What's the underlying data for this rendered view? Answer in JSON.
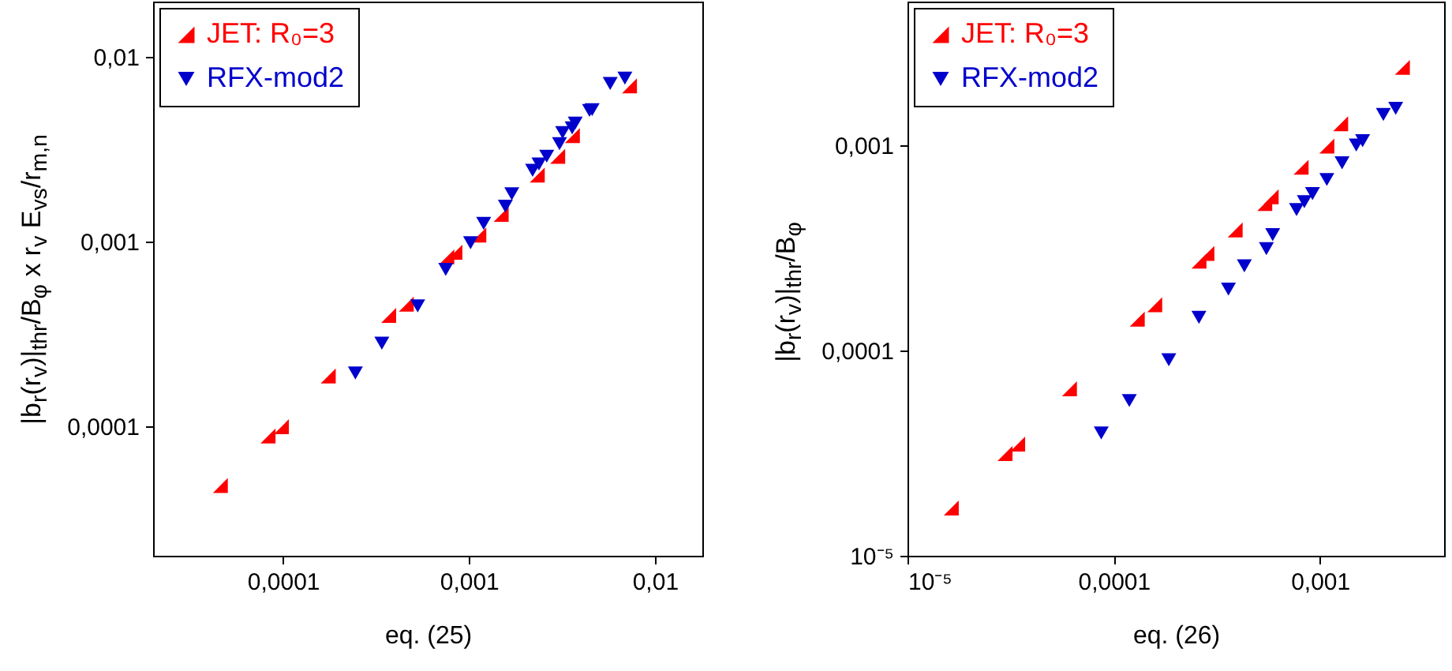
{
  "chart_data": [
    {
      "type": "scatter",
      "xlabel": "eq. (25)",
      "ylabel": "|b$_{r}$(r$_{v}$)|$_{thr}$/B$_{φ}$ x r$_{v}$ E$_{vs}$/r$_{m,n}$",
      "log": "xy",
      "grid": false,
      "legend": "top left",
      "xlim": [
        2e-05,
        0.018
      ],
      "ylim": [
        2e-05,
        0.02
      ],
      "xticks": [
        {
          "value": 0.0001,
          "label": "0,0001"
        },
        {
          "value": 0.001,
          "label": "0,001"
        },
        {
          "value": 0.01,
          "label": "0,01"
        }
      ],
      "yticks": [
        {
          "value": 0.0001,
          "label": "0,0001"
        },
        {
          "value": 0.001,
          "label": "0,001"
        },
        {
          "value": 0.01,
          "label": "0,01"
        }
      ],
      "series": [
        {
          "name": "JET: R₀=3",
          "color": "#ff0000",
          "marker": "triangle",
          "x": [
            4.6e-05,
            8.3e-05,
            9.8e-05,
            0.000175,
            0.00037,
            0.00046,
            0.00076,
            0.00084,
            0.00113,
            0.00149,
            0.00233,
            0.003,
            0.0036,
            0.0073
          ],
          "values": [
            4.8e-05,
            8.9e-05,
            0.0001,
            0.000188,
            0.0004,
            0.00046,
            0.00083,
            0.00088,
            0.00109,
            0.00141,
            0.0023,
            0.00291,
            0.00376,
            0.007
          ]
        },
        {
          "name": "RFX-mod2",
          "color": "#0000cc",
          "marker": "triangle-down",
          "x": [
            0.000245,
            0.00034,
            0.00053,
            0.00075,
            0.00102,
            0.0012,
            0.00157,
            0.0017,
            0.0022,
            0.00238,
            0.00262,
            0.00307,
            0.00319,
            0.00359,
            0.00373,
            0.00445,
            0.0046,
            0.00575,
            0.0069
          ],
          "values": [
            0.000195,
            0.000283,
            0.00045,
            0.00071,
            0.00099,
            0.00126,
            0.00156,
            0.00182,
            0.00244,
            0.00264,
            0.00291,
            0.0034,
            0.00391,
            0.00414,
            0.0044,
            0.00515,
            0.0052,
            0.0072,
            0.0077
          ]
        }
      ]
    },
    {
      "type": "scatter",
      "xlabel": "eq. (26)",
      "ylabel": "|b$_{r}$(r$_{v}$)|$_{thr}$/B$_{φ}$",
      "log": "xy",
      "grid": false,
      "legend": "top left",
      "xlim": [
        1e-05,
        0.004
      ],
      "ylim": [
        1e-05,
        0.005
      ],
      "xticks": [
        {
          "value": 1e-05,
          "label": "10⁻⁵"
        },
        {
          "value": 0.0001,
          "label": "0,0001"
        },
        {
          "value": 0.001,
          "label": "0,001"
        }
      ],
      "yticks": [
        {
          "value": 1e-05,
          "label": "10⁻⁵"
        },
        {
          "value": 0.0001,
          "label": "0,0001"
        },
        {
          "value": 0.001,
          "label": "0,001"
        }
      ],
      "series": [
        {
          "name": "JET: R₀=3",
          "color": "#ff0000",
          "marker": "triangle",
          "x": [
            1.63e-05,
            2.97e-05,
            3.42e-05,
            6.1e-05,
            0.00013,
            0.000158,
            0.000259,
            0.000283,
            0.000388,
            0.00054,
            0.00058,
            0.00081,
            0.00108,
            0.00126,
            0.00251
          ],
          "values": [
            1.71e-05,
            3.15e-05,
            3.5e-05,
            6.5e-05,
            0.000142,
            0.000167,
            0.000272,
            0.000297,
            0.000386,
            0.00052,
            0.00056,
            0.00078,
            0.00099,
            0.00127,
            0.00239
          ]
        },
        {
          "name": "RFX-mod2",
          "color": "#0000cc",
          "marker": "triangle-down",
          "x": [
            8.7e-05,
            0.000119,
            0.000185,
            0.000259,
            0.00036,
            0.00043,
            0.00055,
            0.00059,
            0.00077,
            0.00084,
            0.00092,
            0.00108,
            0.00128,
            0.0015,
            0.00161,
            0.00203,
            0.00233
          ],
          "values": [
            3.96e-05,
            5.7e-05,
            9e-05,
            0.000145,
            0.000199,
            0.000258,
            0.000313,
            0.000366,
            0.000485,
            0.00053,
            0.00058,
            0.00068,
            0.00082,
            0.001,
            0.00105,
            0.00141,
            0.00151
          ]
        }
      ]
    }
  ]
}
